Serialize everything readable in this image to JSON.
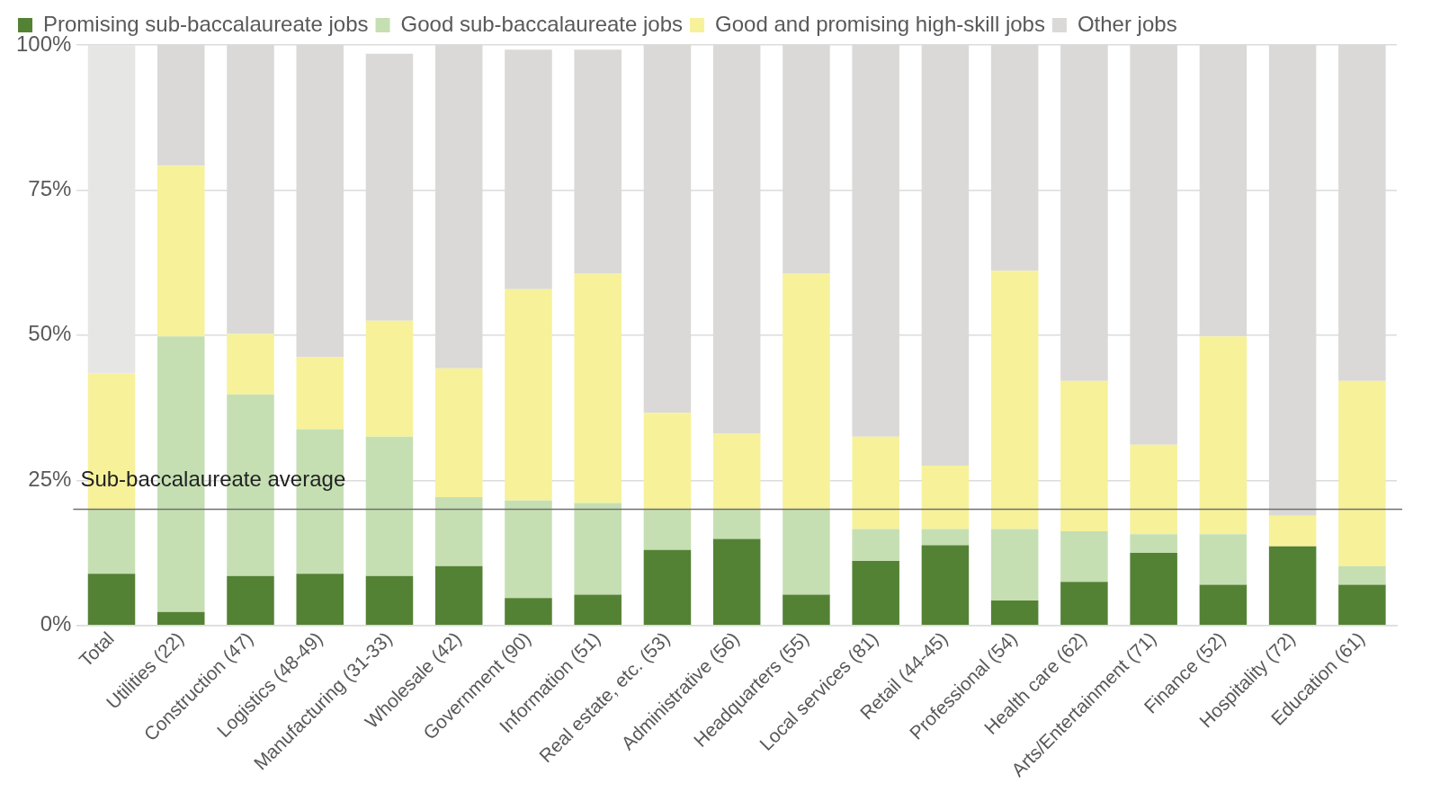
{
  "chart_data": {
    "type": "bar",
    "stacked": true,
    "categories": [
      "Total",
      "Utilities (22)",
      "Construction (47)",
      "Logistics (48-49)",
      "Manufacturing (31-33)",
      "Wholesale (42)",
      "Government (90)",
      "Information (51)",
      "Real estate, etc. (53)",
      "Administrative (56)",
      "Headquarters (55)",
      "Local services (81)",
      "Retail (44-45)",
      "Professional (54)",
      "Health care (62)",
      "Arts/Entertainment (71)",
      "Finance (52)",
      "Hospitality (72)",
      "Education (61)"
    ],
    "series": [
      {
        "name": "Promising sub-baccalaureate jobs",
        "color": "#548235",
        "values": [
          8.9,
          2.3,
          8.5,
          8.9,
          8.5,
          10.2,
          4.7,
          5.3,
          13.0,
          14.9,
          5.3,
          11.1,
          13.8,
          4.3,
          7.5,
          12.5,
          7.0,
          13.6,
          7.0
        ]
      },
      {
        "name": "Good sub-baccalaureate jobs",
        "color": "#c5dfb3",
        "values": [
          11.1,
          47.5,
          31.3,
          24.9,
          24.0,
          11.9,
          16.8,
          15.8,
          7.0,
          5.1,
          14.7,
          5.5,
          2.8,
          12.3,
          8.7,
          3.2,
          8.7,
          0,
          3.2
        ]
      },
      {
        "name": "Good and promising high-skill jobs",
        "color": "#f7f19a",
        "values": [
          23.4,
          29.4,
          10.4,
          12.4,
          20.0,
          22.2,
          36.4,
          39.5,
          16.6,
          13.0,
          40.6,
          15.9,
          10.9,
          44.5,
          25.9,
          15.4,
          34.1,
          5.3,
          31.9
        ]
      },
      {
        "name": "Other jobs",
        "color": "#dad9d7",
        "colors": [
          "#e6e6e5",
          "#dad9d7",
          "#dad9d7",
          "#dad9d7",
          "#dad9d7",
          "#dad9d7",
          "#dad9d7",
          "#dad9d7",
          "#dad9d7",
          "#dad9d7",
          "#dad9d7",
          "#dad9d7",
          "#dad9d7",
          "#dad9d7",
          "#dad9d7",
          "#dad9d7",
          "#dad9d7",
          "#dad9d7",
          "#dad9d7"
        ],
        "values": [
          56.6,
          20.8,
          49.8,
          53.8,
          46.0,
          55.7,
          41.3,
          38.6,
          63.4,
          67.0,
          39.4,
          67.5,
          72.5,
          38.9,
          57.9,
          68.9,
          50.2,
          81.1,
          57.9
        ]
      }
    ],
    "ylim": [
      0,
      100
    ],
    "yticks": [
      {
        "value": 0,
        "label": "0%"
      },
      {
        "value": 25,
        "label": "25%"
      },
      {
        "value": 50,
        "label": "50%"
      },
      {
        "value": 75,
        "label": "75%"
      },
      {
        "value": 100,
        "label": "100%"
      }
    ],
    "grid": "y",
    "legend": "top",
    "ref_lines": [
      {
        "axis": "y",
        "value": 20,
        "label": "Sub-baccalaureate average",
        "color": "#707070"
      }
    ]
  }
}
